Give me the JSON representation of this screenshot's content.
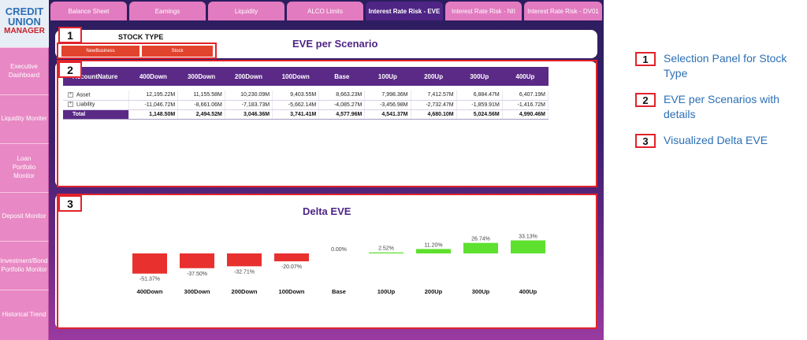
{
  "logo": {
    "line1": "CREDIT",
    "line2": "UNION",
    "line3": "MANAGER"
  },
  "sidebar": [
    {
      "label": "Executive Dashboard"
    },
    {
      "label": "Liquidity Moniter"
    },
    {
      "label": "Loan Portfolio Monitor"
    },
    {
      "label": "Deposit Monitor"
    },
    {
      "label": "Investment/Bond Portfolio Monitor"
    },
    {
      "label": "Historical Trend"
    }
  ],
  "tabs": [
    {
      "label": "Balance Sheet",
      "active": false
    },
    {
      "label": "Earnings",
      "active": false
    },
    {
      "label": "Liquidity",
      "active": false
    },
    {
      "label": "ALCO Limits",
      "active": false
    },
    {
      "label": "Interest Rate Risk - EVE",
      "active": true
    },
    {
      "label": "Interest Rate Risk - NII",
      "active": false
    },
    {
      "label": "Interest Rate Risk - DV01",
      "active": false
    }
  ],
  "stock_panel": {
    "title": "STOCK TYPE",
    "options": [
      "NewBusiness",
      "Stock"
    ]
  },
  "eve_panel": {
    "title": "EVE per Scenario"
  },
  "table": {
    "first_header": "AccountNature",
    "columns": [
      "400Down",
      "300Down",
      "200Down",
      "100Down",
      "Base",
      "100Up",
      "200Up",
      "300Up",
      "400Up"
    ],
    "rows": [
      {
        "name": "Asset",
        "expandable": true,
        "values": [
          "12,195.22M",
          "11,155.58M",
          "10,230.09M",
          "9,403.55M",
          "8,663.23M",
          "7,998.36M",
          "7,412.57M",
          "6,884.47M",
          "6,407.19M"
        ]
      },
      {
        "name": "Liability",
        "expandable": true,
        "values": [
          "-11,046.72M",
          "-8,661.06M",
          "-7,183.73M",
          "-5,662.14M",
          "-4,085.27M",
          "-3,456.98M",
          "-2,732.47M",
          "-1,859.91M",
          "-1,416.72M"
        ]
      }
    ],
    "total": {
      "name": "Total",
      "values": [
        "1,148.50M",
        "2,494.52M",
        "3,046.36M",
        "3,741.41M",
        "4,577.96M",
        "4,541.37M",
        "4,680.10M",
        "5,024.56M",
        "4,990.46M"
      ]
    }
  },
  "chart_panel": {
    "title": "Delta EVE"
  },
  "chart_data": {
    "type": "bar",
    "title": "Delta EVE",
    "categories": [
      "400Down",
      "300Down",
      "200Down",
      "100Down",
      "Base",
      "100Up",
      "200Up",
      "300Up",
      "400Up"
    ],
    "values": [
      -51.37,
      -37.5,
      -32.71,
      -20.07,
      0.0,
      2.52,
      11.2,
      26.74,
      33.13
    ],
    "value_labels": [
      "-51.37%",
      "-37.50%",
      "-32.71%",
      "-20.07%",
      "0.00%",
      "2.52%",
      "11.20%",
      "26.74%",
      "33.13%"
    ],
    "negative_color": "#e8312e",
    "positive_color": "#5ee02e",
    "grid": false
  },
  "annotations": [
    {
      "number": "1",
      "text": "Selection Panel for Stock Type"
    },
    {
      "number": "2",
      "text": "EVE per Scenarios with details"
    },
    {
      "number": "3",
      "text": "Visualized Delta EVE"
    }
  ]
}
